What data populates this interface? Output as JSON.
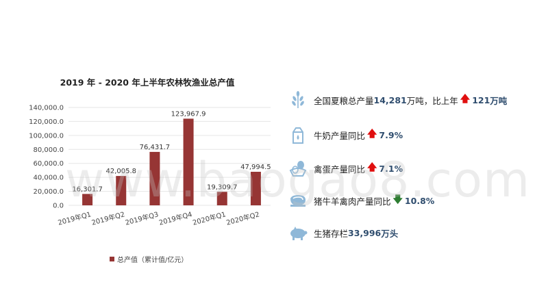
{
  "watermark": "www.baogao8.com",
  "chart_data": {
    "type": "bar",
    "title": "2019 年 - 2020 年上半年农林牧渔业总产值",
    "categories": [
      "2019年Q1",
      "2019年Q2",
      "2019年Q3",
      "2019年Q4",
      "2020年Q1",
      "2020年Q2"
    ],
    "series": [
      {
        "name": "总产值（累计值/亿元）",
        "values": [
          16301.7,
          42005.8,
          76431.7,
          123967.9,
          19309.7,
          47994.5
        ],
        "labels": [
          "16,301.7",
          "42,005.8",
          "76,431.7",
          "123,967.9",
          "19,309.7",
          "47,994.5"
        ],
        "color": "#963534"
      }
    ],
    "y_ticks": [
      "0.0",
      "20,000.0",
      "40,000.0",
      "60,000.0",
      "80,000.0",
      "100,000.0",
      "120,000.0",
      "140,000.0"
    ],
    "ylim": [
      0,
      140000
    ],
    "grid": true,
    "legend": "bottom"
  },
  "stats": [
    {
      "icon": "wheat-icon",
      "prefix": "全国夏粮总产量",
      "value": "14,281",
      "suffix": "万吨，比上年",
      "arrow": "up",
      "value2": "121",
      "suffix2": "万吨"
    },
    {
      "icon": "milk-carton-icon",
      "prefix": "牛奶产量同比",
      "arrow": "up",
      "value": "7.9%"
    },
    {
      "icon": "egg-icon",
      "prefix": "禽蛋产量同比",
      "arrow": "up",
      "value": "7.1%"
    },
    {
      "icon": "meat-icon",
      "prefix": "猪牛羊禽肉产量同比",
      "arrow": "down",
      "value": "10.8%"
    },
    {
      "icon": "pig-icon",
      "prefix": "生猪存栏",
      "value": "33,996",
      "suffix": "万头"
    }
  ],
  "colors": {
    "bar": "#963534",
    "icon": "#8fb8d8",
    "number": "#2f4d6e",
    "up": "#e00f0f",
    "down": "#2e7d32"
  }
}
